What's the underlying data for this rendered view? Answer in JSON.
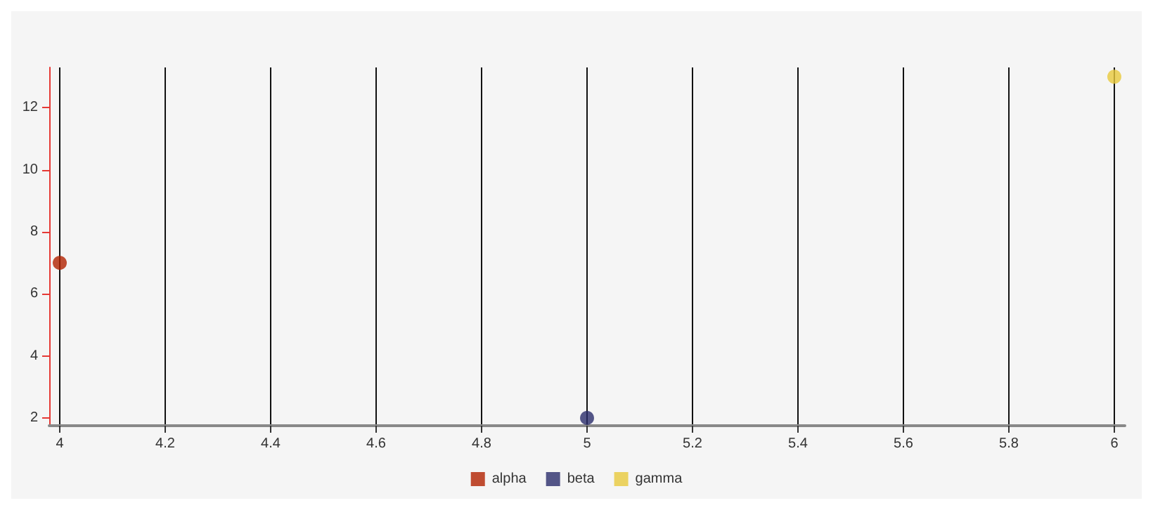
{
  "chart_data": {
    "type": "scatter",
    "series": [
      {
        "name": "alpha",
        "color": "#b22200",
        "x": [
          4
        ],
        "values": [
          7
        ]
      },
      {
        "name": "beta",
        "color": "#2b2d6b",
        "x": [
          5
        ],
        "values": [
          2
        ]
      },
      {
        "name": "gamma",
        "color": "#e8c93c",
        "x": [
          6
        ],
        "values": [
          13
        ]
      }
    ],
    "xlim": [
      3.98,
      6.02
    ],
    "xticks": [
      4,
      4.2,
      4.4,
      4.6,
      4.8,
      5,
      5.2,
      5.4,
      5.6,
      5.8,
      6
    ],
    "ylim": [
      1.75,
      13.3
    ],
    "yticks": [
      2,
      4,
      6,
      8,
      10,
      12
    ],
    "grid": "x",
    "legend": "bottom",
    "marker": "circle"
  }
}
